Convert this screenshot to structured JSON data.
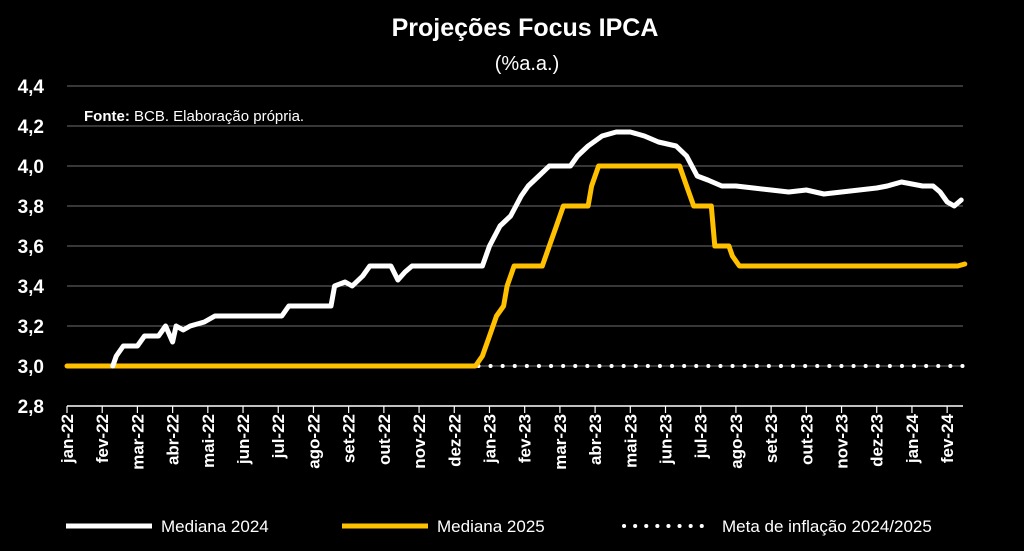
{
  "chart_data": {
    "type": "line",
    "title": "Projeções Focus IPCA",
    "subtitle": "(%a.a.)",
    "source_label": "Fonte:",
    "source_text": " BCB. Elaboração própria.",
    "xlabel": "",
    "ylabel": "",
    "ylim": [
      2.8,
      4.4
    ],
    "yticks": [
      "2,8",
      "3,0",
      "3,2",
      "3,4",
      "3,6",
      "3,8",
      "4,0",
      "4,2",
      "4,4"
    ],
    "xticks": [
      "jan-22",
      "fev-22",
      "mar-22",
      "abr-22",
      "mai-22",
      "jun-22",
      "jul-22",
      "ago-22",
      "set-22",
      "out-22",
      "nov-22",
      "dez-22",
      "jan-23",
      "fev-23",
      "mar-23",
      "abr-23",
      "mai-23",
      "jun-23",
      "jul-23",
      "ago-23",
      "set-23",
      "out-23",
      "nov-23",
      "dez-23",
      "jan-24",
      "fev-24"
    ],
    "grid": true,
    "legend_position": "bottom",
    "series": [
      {
        "name": "Mediana 2024",
        "color": "#ffffff",
        "style": "solid",
        "points": [
          [
            1.3,
            3.0
          ],
          [
            1.4,
            3.05
          ],
          [
            1.6,
            3.1
          ],
          [
            2.0,
            3.1
          ],
          [
            2.2,
            3.15
          ],
          [
            2.6,
            3.15
          ],
          [
            2.8,
            3.2
          ],
          [
            3.0,
            3.12
          ],
          [
            3.1,
            3.2
          ],
          [
            3.3,
            3.18
          ],
          [
            3.5,
            3.2
          ],
          [
            3.9,
            3.22
          ],
          [
            4.2,
            3.25
          ],
          [
            5.0,
            3.25
          ],
          [
            6.1,
            3.25
          ],
          [
            6.3,
            3.3
          ],
          [
            6.6,
            3.3
          ],
          [
            7.5,
            3.3
          ],
          [
            7.6,
            3.4
          ],
          [
            7.9,
            3.42
          ],
          [
            8.1,
            3.4
          ],
          [
            8.4,
            3.45
          ],
          [
            8.6,
            3.5
          ],
          [
            9.2,
            3.5
          ],
          [
            9.4,
            3.43
          ],
          [
            9.6,
            3.47
          ],
          [
            9.8,
            3.5
          ],
          [
            10.5,
            3.5
          ],
          [
            11.0,
            3.5
          ],
          [
            11.6,
            3.5
          ],
          [
            11.8,
            3.5
          ],
          [
            12.0,
            3.6
          ],
          [
            12.3,
            3.7
          ],
          [
            12.6,
            3.75
          ],
          [
            12.9,
            3.85
          ],
          [
            13.1,
            3.9
          ],
          [
            13.4,
            3.95
          ],
          [
            13.7,
            4.0
          ],
          [
            14.3,
            4.0
          ],
          [
            14.5,
            4.05
          ],
          [
            14.8,
            4.1
          ],
          [
            15.2,
            4.15
          ],
          [
            15.6,
            4.17
          ],
          [
            16.0,
            4.17
          ],
          [
            16.4,
            4.15
          ],
          [
            16.8,
            4.12
          ],
          [
            17.3,
            4.1
          ],
          [
            17.6,
            4.05
          ],
          [
            17.9,
            3.95
          ],
          [
            18.2,
            3.93
          ],
          [
            18.6,
            3.9
          ],
          [
            19.0,
            3.9
          ],
          [
            19.5,
            3.89
          ],
          [
            20.0,
            3.88
          ],
          [
            20.5,
            3.87
          ],
          [
            21.0,
            3.88
          ],
          [
            21.5,
            3.86
          ],
          [
            22.0,
            3.87
          ],
          [
            22.5,
            3.88
          ],
          [
            23.0,
            3.89
          ],
          [
            23.3,
            3.9
          ],
          [
            23.7,
            3.92
          ],
          [
            24.0,
            3.91
          ],
          [
            24.3,
            3.9
          ],
          [
            24.6,
            3.9
          ],
          [
            24.8,
            3.87
          ],
          [
            25.0,
            3.82
          ],
          [
            25.2,
            3.8
          ],
          [
            25.4,
            3.83
          ]
        ]
      },
      {
        "name": "Mediana 2025",
        "color": "#ffc000",
        "style": "solid",
        "points": [
          [
            0.0,
            3.0
          ],
          [
            11.6,
            3.0
          ],
          [
            11.8,
            3.05
          ],
          [
            12.0,
            3.15
          ],
          [
            12.2,
            3.25
          ],
          [
            12.4,
            3.3
          ],
          [
            12.5,
            3.4
          ],
          [
            12.7,
            3.5
          ],
          [
            13.5,
            3.5
          ],
          [
            13.7,
            3.6
          ],
          [
            13.9,
            3.7
          ],
          [
            14.1,
            3.8
          ],
          [
            14.8,
            3.8
          ],
          [
            14.9,
            3.9
          ],
          [
            15.1,
            4.0
          ],
          [
            17.4,
            4.0
          ],
          [
            17.6,
            3.9
          ],
          [
            17.8,
            3.8
          ],
          [
            18.3,
            3.8
          ],
          [
            18.4,
            3.6
          ],
          [
            18.8,
            3.6
          ],
          [
            18.9,
            3.55
          ],
          [
            19.1,
            3.5
          ],
          [
            24.0,
            3.5
          ],
          [
            25.0,
            3.5
          ],
          [
            25.3,
            3.5
          ],
          [
            25.5,
            3.51
          ]
        ]
      },
      {
        "name": "Meta de inflação 2024/2025",
        "color": "#ffffff",
        "style": "dotted",
        "points": [
          [
            0.0,
            3.0
          ],
          [
            25.5,
            3.0
          ]
        ]
      }
    ]
  }
}
